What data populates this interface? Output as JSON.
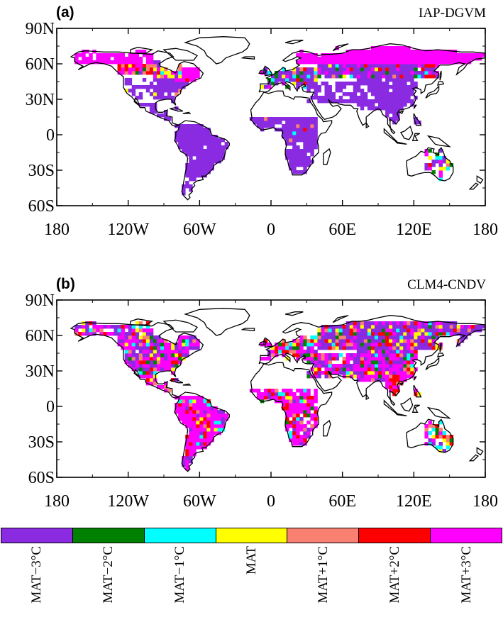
{
  "panels": [
    {
      "letter": "(a)",
      "model": "IAP-DGVM"
    },
    {
      "letter": "(b)",
      "model": "CLM4-CNDV"
    }
  ],
  "axes": {
    "lat_ticks": [
      "90N",
      "60N",
      "30N",
      "0",
      "30S",
      "60S"
    ],
    "lon_ticks": [
      "180",
      "120W",
      "60W",
      "0",
      "60E",
      "120E",
      "180"
    ],
    "lat_range": [
      -60,
      90
    ],
    "lon_range": [
      -180,
      180
    ]
  },
  "legend": {
    "items": [
      {
        "label": "MAT−3°C",
        "color": "#8a2be2"
      },
      {
        "label": "MAT−2°C",
        "color": "#008000"
      },
      {
        "label": "MAT−1°C",
        "color": "#00ffff"
      },
      {
        "label": "MAT",
        "color": "#ffff00"
      },
      {
        "label": "MAT+1°C",
        "color": "#fa8072"
      },
      {
        "label": "MAT+2°C",
        "color": "#ff0000"
      },
      {
        "label": "MAT+3°C",
        "color": "#ff00ff"
      }
    ]
  },
  "colors": {
    "coastline": "#000000",
    "background": "#ffffff"
  }
}
